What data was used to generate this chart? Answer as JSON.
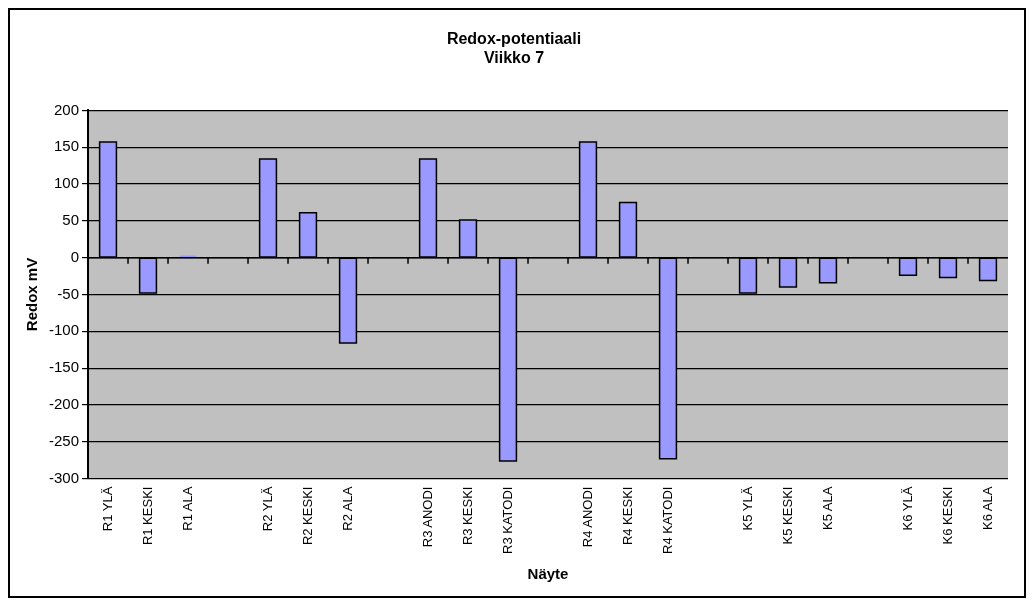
{
  "chart_data": {
    "type": "bar",
    "title": "Redox-potentiaali\nViikko 7",
    "xlabel": "Näyte",
    "ylabel": "Redox mV",
    "categories": [
      "R1 YLÄ",
      "R1 KESKI",
      "R1 ALA",
      null,
      "R2 YLÄ",
      "R2 KESKI",
      "R2 ALA",
      null,
      "R3 ANODI",
      "R3 KESKI",
      "R3 KATODI",
      null,
      "R4 ANODI",
      "R4 KESKI",
      "R4 KATODI",
      null,
      "K5 YLÄ",
      "K5 KESKI",
      "K5 ALA",
      null,
      "K6 YLÄ",
      "K6 KESKI",
      "K6 ALA"
    ],
    "values": [
      157,
      -48,
      3,
      null,
      134,
      61,
      -116,
      null,
      134,
      51,
      -276,
      null,
      157,
      75,
      -273,
      null,
      -48,
      -40,
      -34,
      null,
      -24,
      -27,
      -31
    ],
    "color": "#9999ff",
    "ylim": [
      -300,
      200
    ],
    "yticks": [
      -300,
      -250,
      -200,
      -150,
      -100,
      -50,
      0,
      50,
      100,
      150,
      200
    ],
    "grid": "y",
    "legend": false
  }
}
